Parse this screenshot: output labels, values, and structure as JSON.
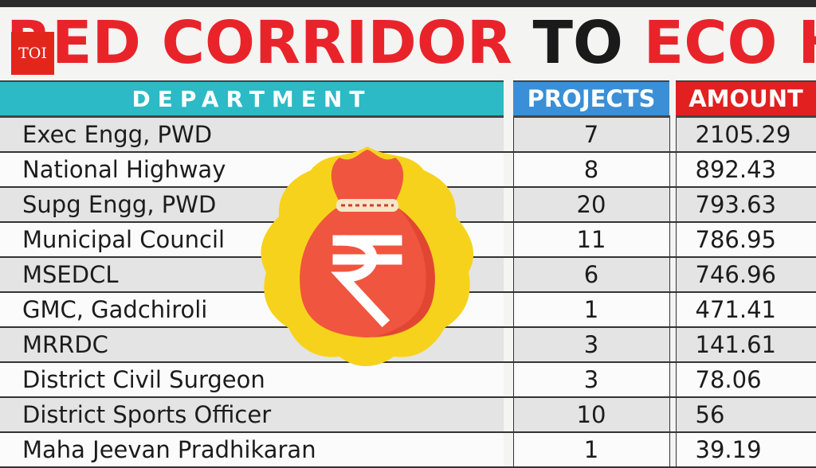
{
  "headline": {
    "part1": "RED CORRIDOR",
    "part2": "TO",
    "part3": "ECO HUB"
  },
  "logo": {
    "text": "TOI"
  },
  "colors": {
    "headline_red": "#e8242a",
    "department_header": "#2bbac6",
    "projects_header": "#3a8fd6",
    "amount_header": "#e1201f",
    "logo_red": "#e2261c"
  },
  "table": {
    "headers": {
      "department": "DEPARTMENT",
      "projects": "PROJECTS",
      "amount": "AMOUNT"
    },
    "rows": [
      {
        "department": "Exec Engg, PWD",
        "projects": "7",
        "amount": "2105.29"
      },
      {
        "department": "National Highway",
        "projects": "8",
        "amount": "892.43"
      },
      {
        "department": "Supg Engg, PWD",
        "projects": "20",
        "amount": "793.63"
      },
      {
        "department": "Municipal Council",
        "projects": "11",
        "amount": "786.95"
      },
      {
        "department": "MSEDCL",
        "projects": "6",
        "amount": "746.96"
      },
      {
        "department": "GMC, Gadchiroli",
        "projects": "1",
        "amount": "471.41"
      },
      {
        "department": "MRRDC",
        "projects": "3",
        "amount": "141.61"
      },
      {
        "department": "District Civil Surgeon",
        "projects": "3",
        "amount": "78.06"
      },
      {
        "department": "District Sports Officer",
        "projects": "10",
        "amount": "56"
      },
      {
        "department": "Maha Jeevan Pradhikaran",
        "projects": "1",
        "amount": "39.19"
      }
    ]
  },
  "illustration": {
    "icon": "rupee-money-bag-icon"
  }
}
